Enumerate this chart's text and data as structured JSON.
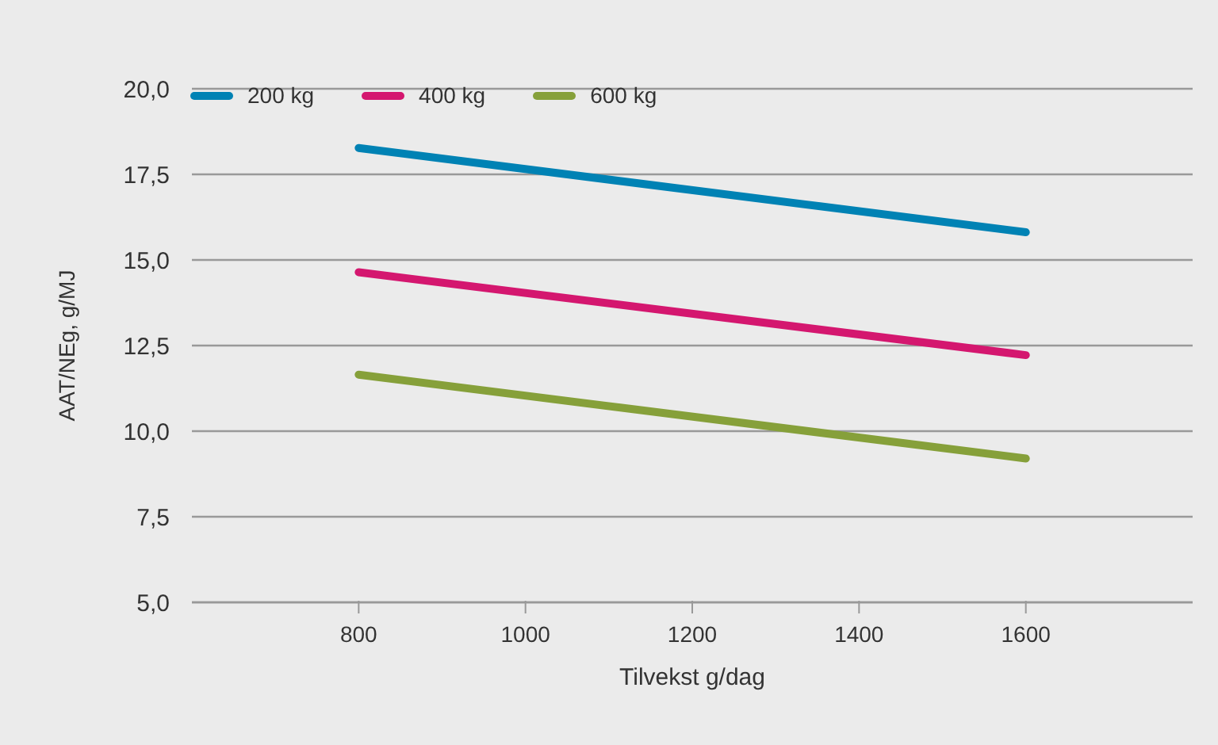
{
  "chart_data": {
    "type": "line",
    "xlabel": "Tilvekst g/dag",
    "ylabel": "AAT/NEg, g/MJ",
    "x": [
      800,
      1600
    ],
    "series": [
      {
        "name": "200 kg",
        "color": "#0082b4",
        "values": [
          18.27,
          15.81
        ]
      },
      {
        "name": "400 kg",
        "color": "#d4176f",
        "values": [
          14.64,
          12.22
        ]
      },
      {
        "name": "600 kg",
        "color": "#86a03a",
        "values": [
          11.65,
          9.2
        ]
      }
    ],
    "xlim": [
      600,
      1800
    ],
    "xticks": [
      800,
      1000,
      1200,
      1400,
      1600
    ],
    "ylim": [
      5,
      20
    ],
    "yticks": [
      {
        "value": 5,
        "label": "5,0"
      },
      {
        "value": 7.5,
        "label": "7,5"
      },
      {
        "value": 10,
        "label": "10,0"
      },
      {
        "value": 12.5,
        "label": "12,5"
      },
      {
        "value": 15,
        "label": "15,0"
      },
      {
        "value": 17.5,
        "label": "17,5"
      },
      {
        "value": 20,
        "label": "20,0"
      }
    ],
    "grid": "y",
    "legend": "top left",
    "marker": "none",
    "line_style": "solid"
  }
}
